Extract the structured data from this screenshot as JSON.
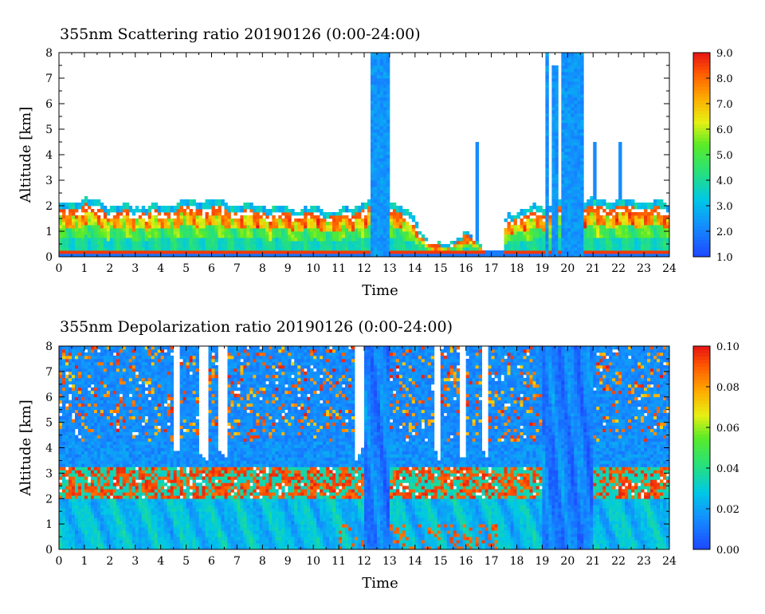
{
  "chart_data": [
    {
      "type": "heatmap",
      "title": "355nm Scattering ratio  20190126 (0:00-24:00)",
      "xlabel": "Time",
      "ylabel": "Altitude [km]",
      "xlim": [
        0,
        24
      ],
      "ylim": [
        0,
        8
      ],
      "x_ticks": [
        "0",
        "1",
        "2",
        "3",
        "4",
        "5",
        "6",
        "7",
        "8",
        "9",
        "10",
        "11",
        "12",
        "13",
        "14",
        "15",
        "16",
        "17",
        "18",
        "19",
        "20",
        "21",
        "22",
        "23",
        "24"
      ],
      "y_ticks": [
        "0",
        "1",
        "2",
        "3",
        "4",
        "5",
        "6",
        "7",
        "8"
      ],
      "colorbar": {
        "min": 1.0,
        "max": 9.0,
        "ticks": [
          "1.0",
          "2.0",
          "3.0",
          "4.0",
          "5.0",
          "6.0",
          "7.0",
          "8.0",
          "9.0"
        ]
      },
      "colors": {
        "low": "#1e5bff",
        "mid": "#30e030",
        "high": "#ff2a00"
      },
      "features": {
        "boundary_layer_top_km": [
          [
            0,
            2.0
          ],
          [
            1,
            2.3
          ],
          [
            2,
            2.0
          ],
          [
            3,
            2.0
          ],
          [
            4,
            2.0
          ],
          [
            5,
            2.2
          ],
          [
            6,
            2.2
          ],
          [
            7,
            2.1
          ],
          [
            8,
            2.0
          ],
          [
            9,
            1.9
          ],
          [
            10,
            1.9
          ],
          [
            11,
            1.8
          ],
          [
            11.7,
            2.0
          ],
          [
            12,
            2.2
          ],
          [
            13,
            2.3
          ],
          [
            14,
            1.5
          ],
          [
            14.5,
            0.6
          ],
          [
            15,
            0.4
          ],
          [
            16,
            0.9
          ],
          [
            17,
            0.2
          ],
          [
            17.6,
            1.6
          ],
          [
            18,
            1.8
          ],
          [
            19,
            2.0
          ],
          [
            20,
            2.2
          ],
          [
            21,
            2.2
          ],
          [
            22,
            2.2
          ],
          [
            23,
            2.2
          ],
          [
            24,
            2.1
          ]
        ],
        "no_data_intervals_h": [
          [
            16.8,
            17.5
          ]
        ],
        "cloud_columns": [
          {
            "x_start": 12.2,
            "x_end": 13.0,
            "top_km": 8.0
          },
          {
            "x_start": 19.1,
            "x_end": 19.3,
            "top_km": 8.0
          },
          {
            "x_start": 19.4,
            "x_end": 19.6,
            "top_km": 7.5
          },
          {
            "x_start": 19.8,
            "x_end": 20.6,
            "top_km": 8.0
          }
        ]
      }
    },
    {
      "type": "heatmap",
      "title": "355nm Depolarization ratio  20190126 (0:00-24:00)",
      "xlabel": "Time",
      "ylabel": "Altitude [km]",
      "xlim": [
        0,
        24
      ],
      "ylim": [
        0,
        8
      ],
      "x_ticks": [
        "0",
        "1",
        "2",
        "3",
        "4",
        "5",
        "6",
        "7",
        "8",
        "9",
        "10",
        "11",
        "12",
        "13",
        "14",
        "15",
        "16",
        "17",
        "18",
        "19",
        "20",
        "21",
        "22",
        "23",
        "24"
      ],
      "y_ticks": [
        "0",
        "1",
        "2",
        "3",
        "4",
        "5",
        "6",
        "7",
        "8"
      ],
      "colorbar": {
        "min": 0.0,
        "max": 0.1,
        "ticks": [
          "0.00",
          "0.02",
          "0.04",
          "0.06",
          "0.08",
          "0.10"
        ]
      },
      "colors": {
        "low": "#1e5bff",
        "mid": "#30e030",
        "high": "#ff2a00"
      },
      "features": {
        "high_depol_layer_km": [
          2.0,
          3.2
        ],
        "low_depol_columns_h": [
          [
            12.0,
            13.0
          ],
          [
            19.0,
            21.0
          ]
        ],
        "gap_columns_h": [
          [
            4.5,
            4.8
          ],
          [
            5.5,
            5.9
          ],
          [
            6.3,
            6.6
          ],
          [
            11.6,
            12.0
          ],
          [
            14.7,
            15.0
          ],
          [
            15.8,
            16.0
          ],
          [
            16.6,
            16.9
          ]
        ]
      }
    }
  ]
}
